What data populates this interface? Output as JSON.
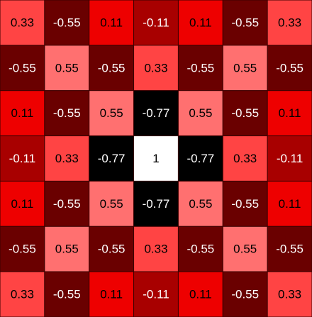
{
  "chart_data": {
    "type": "heatmap",
    "rows": 7,
    "cols": 7,
    "values": [
      [
        0.33,
        -0.55,
        0.11,
        -0.11,
        0.11,
        -0.55,
        0.33
      ],
      [
        -0.55,
        0.55,
        -0.55,
        0.33,
        -0.55,
        0.55,
        -0.55
      ],
      [
        0.11,
        -0.55,
        0.55,
        -0.77,
        0.55,
        -0.55,
        0.11
      ],
      [
        -0.11,
        0.33,
        -0.77,
        1,
        -0.77,
        0.33,
        -0.11
      ],
      [
        0.11,
        -0.55,
        0.55,
        -0.77,
        0.55,
        -0.55,
        0.11
      ],
      [
        -0.55,
        0.55,
        -0.55,
        0.33,
        -0.55,
        0.55,
        -0.55
      ],
      [
        0.33,
        -0.55,
        0.11,
        -0.11,
        0.11,
        -0.55,
        0.33
      ]
    ],
    "labels": [
      [
        "0.33",
        "-0.55",
        "0.11",
        "-0.11",
        "0.11",
        "-0.55",
        "0.33"
      ],
      [
        "-0.55",
        "0.55",
        "-0.55",
        "0.33",
        "-0.55",
        "0.55",
        "-0.55"
      ],
      [
        "0.11",
        "-0.55",
        "0.55",
        "-0.77",
        "0.55",
        "-0.55",
        "0.11"
      ],
      [
        "-0.11",
        "0.33",
        "-0.77",
        "1",
        "-0.77",
        "0.33",
        "-0.11"
      ],
      [
        "0.11",
        "-0.55",
        "0.55",
        "-0.77",
        "0.55",
        "-0.55",
        "0.11"
      ],
      [
        "-0.55",
        "0.55",
        "-0.55",
        "0.33",
        "-0.55",
        "0.55",
        "-0.55"
      ],
      [
        "0.33",
        "-0.55",
        "0.11",
        "-0.11",
        "0.11",
        "-0.55",
        "0.33"
      ]
    ],
    "color_map": {
      "1": "#FFFFFF",
      "0.55": "#FF7070",
      "0.33": "#FF4444",
      "0.11": "#EE0000",
      "-0.11": "#A80000",
      "-0.55": "#6A0000",
      "-0.77": "#000000"
    },
    "text_colors": {
      "dark": "#000000",
      "light": "#FFFFFF"
    },
    "grid_color": "#3A0000"
  }
}
